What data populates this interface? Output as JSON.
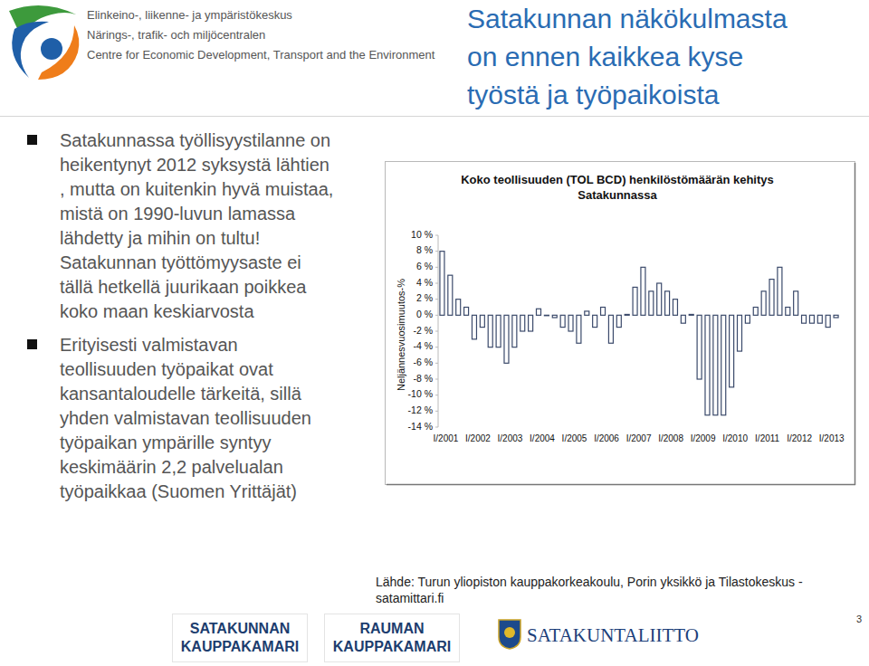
{
  "header": {
    "lines": [
      "Elinkeino-, liikenne- ja ympäristökeskus",
      "Närings-, trafik- och miljöcentralen",
      "Centre for Economic Development, Transport and the Environment"
    ]
  },
  "headline": {
    "lines": [
      "Satakunnan näkökulmasta",
      "on ennen kaikkea kyse",
      "työstä ja työpaikoista"
    ]
  },
  "bullets": [
    "Satakunnassa työllisyystilanne on heikentynyt 2012 syksystä lähtien , mutta on kuitenkin hyvä muistaa, mistä on 1990-luvun lamassa lähdetty ja mihin on tultu! Satakunnan työttömyysaste ei tällä hetkellä juurikaan poikkea koko maan keskiarvosta",
    "Erityisesti valmistavan teollisuuden työpaikat ovat kansantaloudelle tärkeitä, sillä yhden valmistavan teollisuuden työpaikan ympärille syntyy keskimäärin 2,2 palvelualan työpaikkaa (Suomen Yrittäjät)"
  ],
  "chart_data": {
    "type": "bar",
    "title": "Koko teollisuuden (TOL BCD) henkilöstömäärän kehitys Satakunnassa",
    "y_label": "Neljännesvuosimuutos-%",
    "categories": [
      "I/2001",
      null,
      null,
      null,
      "I/2002",
      null,
      null,
      null,
      "I/2003",
      null,
      null,
      null,
      "I/2004",
      null,
      null,
      null,
      "I/2005",
      null,
      null,
      null,
      "I/2006",
      null,
      null,
      null,
      "I/2007",
      null,
      null,
      null,
      "I/2008",
      null,
      null,
      null,
      "I/2009",
      null,
      null,
      null,
      "I/2010",
      null,
      null,
      null,
      "I/2011",
      null,
      null,
      null,
      "I/2012",
      null,
      null,
      null,
      "I/2013",
      null
    ],
    "values": [
      8,
      5,
      2,
      1,
      -3,
      -1.5,
      -4,
      -4,
      -6,
      -4,
      -2,
      -2,
      0.8,
      0,
      -0.3,
      -1.5,
      -2,
      -3.5,
      0.5,
      -1.5,
      1,
      -3.5,
      -1.5,
      0.1,
      3.5,
      6,
      3,
      4,
      3,
      2,
      -1,
      0.1,
      -8,
      -12.5,
      -12.5,
      -12.5,
      -9,
      -4.5,
      -1,
      1,
      3,
      4.5,
      6,
      1,
      3,
      -1,
      -1,
      -1,
      -1.5,
      -0.3
    ],
    "color": "#3b4a6b",
    "ylim": [
      -14,
      10
    ],
    "yticks": [
      {
        "value": -14,
        "label": "-14 %"
      },
      {
        "value": -12,
        "label": "-12 %"
      },
      {
        "value": -10,
        "label": "-10 %"
      },
      {
        "value": -8,
        "label": "-8 %"
      },
      {
        "value": -6,
        "label": "-6 %"
      },
      {
        "value": -4,
        "label": "-4 %"
      },
      {
        "value": -2,
        "label": "-2 %"
      },
      {
        "value": 0,
        "label": "0 %"
      },
      {
        "value": 2,
        "label": "2 %"
      },
      {
        "value": 4,
        "label": "4 %"
      },
      {
        "value": 6,
        "label": "6 %"
      },
      {
        "value": 8,
        "label": "8 %"
      },
      {
        "value": 10,
        "label": "10 %"
      }
    ],
    "grid": false
  },
  "source": "Lähde: Turun yliopiston kauppakorkeakoulu, Porin yksikkö ja Tilastokeskus - satamittari.fi",
  "footer": {
    "logos": [
      {
        "lines": [
          "SATAKUNNAN",
          "KAUPPAKAMARI"
        ]
      },
      {
        "lines": [
          "RAUMAN",
          "KAUPPAKAMARI"
        ]
      },
      {
        "lines": [
          "SATAKUNTALIITTO"
        ]
      }
    ]
  },
  "page_number": "3"
}
